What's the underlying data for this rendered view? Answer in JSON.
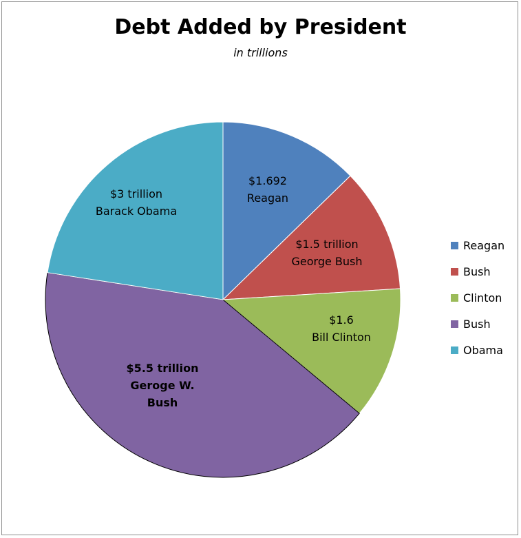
{
  "chart_data": {
    "type": "pie",
    "title": "Debt Added by President",
    "subtitle": "in trillions",
    "slices": [
      {
        "legend": "Reagan",
        "value": 1.692,
        "label_lines": [
          "$1.692",
          "Reagan"
        ],
        "color": "#4f81bd",
        "bold": false
      },
      {
        "legend": "Bush",
        "value": 1.5,
        "label_lines": [
          "$1.5 trillion",
          "George Bush"
        ],
        "color": "#c0504d",
        "bold": false
      },
      {
        "legend": "Clinton",
        "value": 1.6,
        "label_lines": [
          "$1.6",
          "Bill Clinton"
        ],
        "color": "#9bbb59",
        "bold": false
      },
      {
        "legend": "Bush",
        "value": 5.5,
        "label_lines": [
          "$5.5 trillion",
          "Geroge W.",
          "Bush"
        ],
        "color": "#8064a2",
        "bold": true
      },
      {
        "legend": "Obama",
        "value": 3,
        "label_lines": [
          "$3 trillion",
          "Barack Obama"
        ],
        "color": "#4bacc6",
        "bold": false
      }
    ],
    "legend_position": "right"
  }
}
